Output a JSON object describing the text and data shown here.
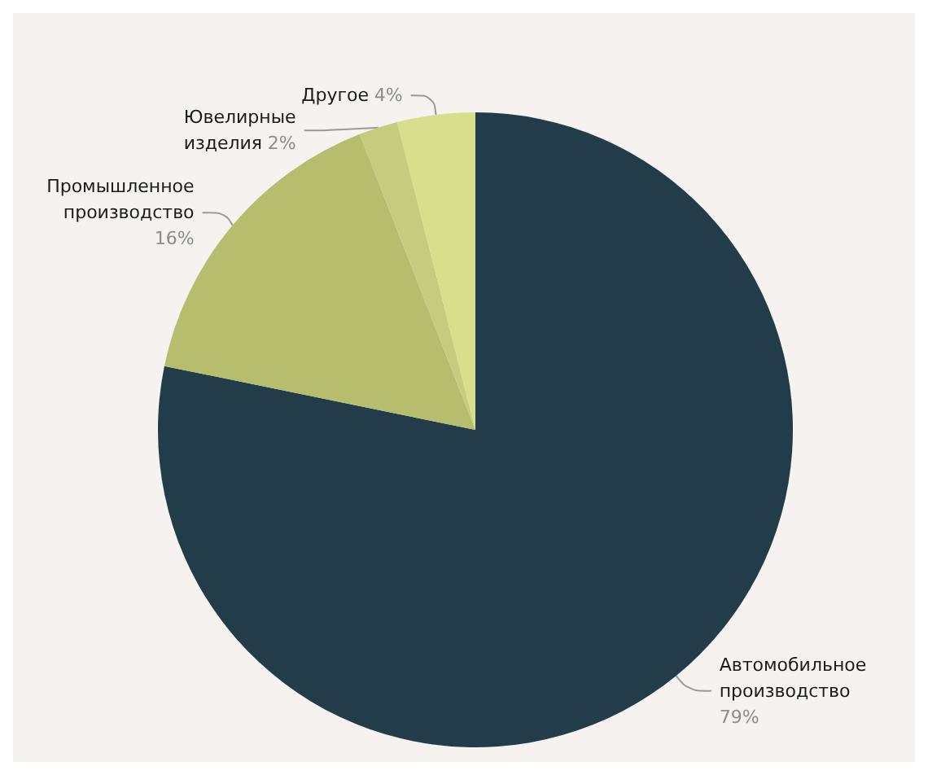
{
  "chart_data": {
    "type": "pie",
    "categories": [
      "Автомобильное производство",
      "Промышленное производство",
      "Ювелирные изделия",
      "Другое"
    ],
    "values": [
      79,
      16,
      2,
      4
    ],
    "value_labels": [
      "79%",
      "16%",
      "2%",
      "4%"
    ],
    "colors": [
      "#233c4a",
      "#b6bd6d",
      "#c6cc7e",
      "#d8df8c"
    ],
    "legend": false
  }
}
